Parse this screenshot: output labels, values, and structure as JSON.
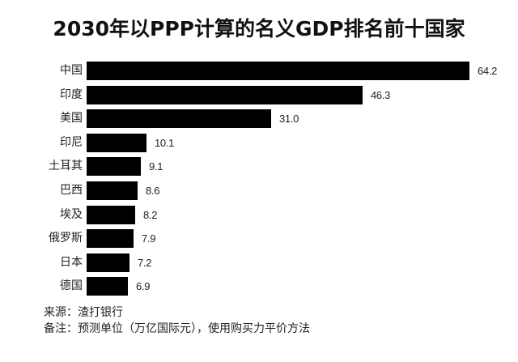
{
  "header": {
    "title": "2030年以PPP计算的名义GDP排名前十国家"
  },
  "footer": {
    "source": "来源：渣打银行",
    "note": "备注：预测单位（万亿国际元），使用购买力平价方法"
  },
  "colors": {
    "bar": "#000000",
    "text": "#222222",
    "background": "#ffffff"
  },
  "chart_data": {
    "type": "bar",
    "orientation": "horizontal",
    "title": "2030年以PPP计算的名义GDP排名前十国家",
    "xlabel": "",
    "ylabel": "",
    "unit": "万亿国际元",
    "categories": [
      "中国",
      "印度",
      "美国",
      "印尼",
      "土耳其",
      "巴西",
      "埃及",
      "俄罗斯",
      "日本",
      "德国"
    ],
    "values": [
      64.2,
      46.3,
      31.0,
      10.1,
      9.1,
      8.6,
      8.2,
      7.9,
      7.2,
      6.9
    ],
    "value_labels": [
      "64.2",
      "46.3",
      "31.0",
      "10.1",
      "9.1",
      "8.6",
      "8.2",
      "7.9",
      "7.2",
      "6.9"
    ],
    "grid": false,
    "legend": "none",
    "source": "来源：渣打银行",
    "note": "备注：预测单位（万亿国际元），使用购买力平价方法"
  }
}
